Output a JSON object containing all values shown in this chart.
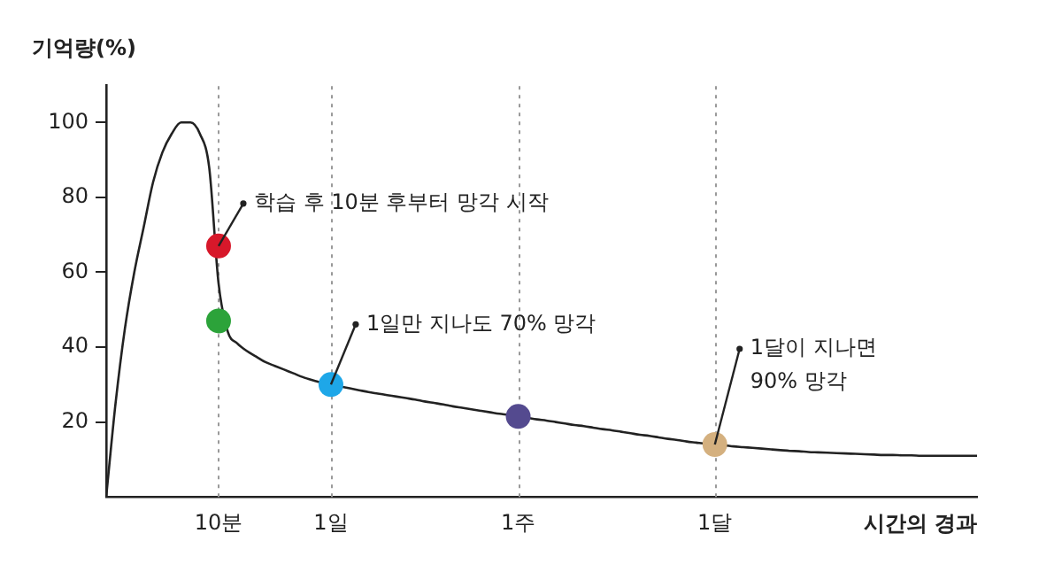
{
  "chart_data": {
    "type": "line",
    "ylabel": "기억량(%)",
    "xlabel": "시간의 경과",
    "categories": [
      null,
      null,
      null,
      null,
      null,
      null,
      null,
      null,
      null,
      null,
      null,
      null,
      "10분",
      null,
      null,
      null,
      null,
      null,
      null,
      null,
      null,
      null,
      null,
      null,
      "1일",
      null,
      null,
      null,
      null,
      null,
      null,
      null,
      null,
      null,
      null,
      null,
      null,
      null,
      null,
      null,
      null,
      null,
      null,
      null,
      "1주",
      null,
      null,
      null,
      null,
      null,
      null,
      null,
      null,
      null,
      null,
      null,
      null,
      null,
      null,
      null,
      null,
      null,
      null,
      null,
      null,
      "1달",
      null,
      null,
      null,
      null,
      null,
      null,
      null,
      null,
      null,
      null,
      null,
      null,
      null,
      null,
      null,
      null,
      null,
      null,
      null,
      null,
      null,
      null,
      null,
      null,
      null,
      null,
      null,
      null
    ],
    "ylim": [
      0,
      110
    ],
    "yticks": [
      20,
      40,
      60,
      80,
      100
    ],
    "grid": "x",
    "legend": false,
    "series": [
      {
        "color": "#222222",
        "marker": "none",
        "values": [
          0,
          25,
          45,
          60,
          72,
          84,
          92,
          97,
          100,
          100,
          97,
          88,
          57,
          44,
          41,
          39,
          37.5,
          36,
          35,
          34,
          33,
          32,
          31.2,
          30.5,
          30,
          29.5,
          29,
          28.5,
          28,
          27.6,
          27.2,
          26.8,
          26.4,
          26,
          25.5,
          25.1,
          24.7,
          24.2,
          23.8,
          23.4,
          23,
          22.6,
          22.2,
          21.9,
          21.5,
          21.1,
          20.7,
          20.4,
          20,
          19.6,
          19.2,
          18.9,
          18.5,
          18.1,
          17.8,
          17.4,
          17,
          16.6,
          16.3,
          15.9,
          15.5,
          15.2,
          14.8,
          14.5,
          14.2,
          14,
          13.8,
          13.5,
          13.3,
          13.1,
          12.9,
          12.7,
          12.5,
          12.3,
          12.2,
          12,
          11.9,
          11.8,
          11.7,
          11.6,
          11.5,
          11.4,
          11.3,
          11.2,
          11.2,
          11.1,
          11.1,
          11,
          11,
          11,
          11,
          11,
          11,
          11
        ]
      },
      {
        "type": "scatter",
        "marker": "circle",
        "colors": [
          "#d7182a",
          "#2ca33a",
          "#1ea7e8",
          "#544a8f",
          "#d4b07f"
        ],
        "x": [
          "10분",
          "10분",
          "1일",
          "1주",
          "1달"
        ],
        "values": [
          67,
          47,
          30,
          21.5,
          14
        ]
      }
    ],
    "annotations": [
      {
        "text": "학습 후 10분 후부터 망각 시작",
        "x": "10분",
        "y": 67
      },
      {
        "text": "1일만 지나도 70% 망각",
        "x": "1일",
        "y": 30
      },
      {
        "text": "1달이 지나면\n90% 망각",
        "x": "1달",
        "y": 14
      }
    ]
  }
}
